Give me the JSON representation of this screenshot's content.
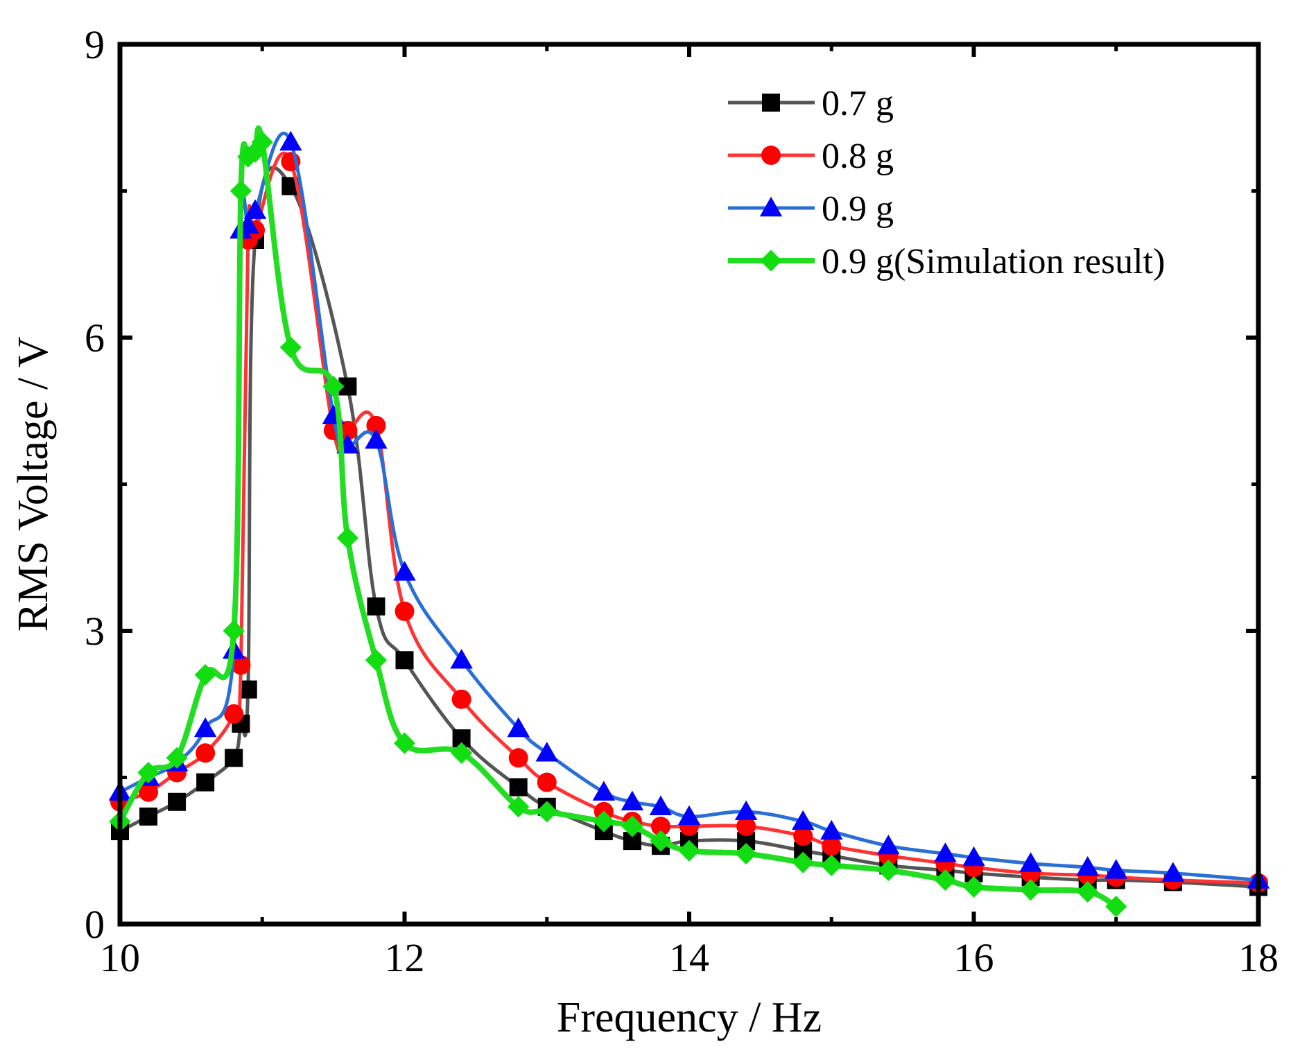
{
  "chart_data": {
    "type": "line",
    "title": "",
    "xlabel": "Frequency / Hz",
    "ylabel": "RMS Voltage / V",
    "xlim": [
      10,
      18
    ],
    "ylim": [
      0,
      9
    ],
    "xticks": [
      10,
      12,
      14,
      16,
      18
    ],
    "yticks": [
      0,
      3,
      6,
      9
    ],
    "grid": false,
    "legend_position": "top-right",
    "series": [
      {
        "name": "0.7 g",
        "color": "#555555",
        "marker_color": "#000000",
        "marker": "square",
        "x": [
          10.0,
          10.2,
          10.4,
          10.6,
          10.8,
          10.85,
          10.9,
          10.95,
          11.2,
          11.6,
          11.8,
          12.0,
          12.4,
          12.8,
          13.0,
          13.4,
          13.6,
          13.8,
          14.0,
          14.4,
          14.8,
          15.0,
          15.4,
          15.8,
          16.0,
          16.4,
          16.8,
          17.0,
          17.4,
          18.0
        ],
        "y": [
          0.95,
          1.1,
          1.25,
          1.45,
          1.7,
          2.05,
          2.4,
          7.0,
          7.55,
          5.5,
          3.25,
          2.7,
          1.9,
          1.4,
          1.2,
          0.95,
          0.85,
          0.8,
          0.85,
          0.85,
          0.75,
          0.7,
          0.6,
          0.55,
          0.52,
          0.48,
          0.45,
          0.45,
          0.43,
          0.38
        ]
      },
      {
        "name": "0.8 g",
        "color": "#ff3333",
        "marker_color": "#ff0000",
        "marker": "circle",
        "x": [
          10.0,
          10.2,
          10.4,
          10.6,
          10.8,
          10.85,
          10.9,
          10.95,
          11.2,
          11.5,
          11.6,
          11.8,
          12.0,
          12.4,
          12.8,
          13.0,
          13.4,
          13.6,
          13.8,
          14.0,
          14.4,
          14.8,
          15.0,
          15.4,
          15.8,
          16.0,
          16.4,
          16.8,
          17.0,
          17.4,
          18.0
        ],
        "y": [
          1.25,
          1.35,
          1.55,
          1.75,
          2.15,
          2.65,
          7.0,
          7.1,
          7.8,
          5.05,
          5.05,
          5.1,
          3.2,
          2.3,
          1.7,
          1.45,
          1.15,
          1.05,
          1.0,
          1.0,
          1.0,
          0.9,
          0.8,
          0.7,
          0.62,
          0.58,
          0.52,
          0.5,
          0.48,
          0.45,
          0.42
        ]
      },
      {
        "name": "0.9 g",
        "color": "#2a6fd6",
        "marker_color": "#0000ff",
        "marker": "triangle",
        "x": [
          10.0,
          10.2,
          10.4,
          10.6,
          10.8,
          10.85,
          10.9,
          10.95,
          11.2,
          11.5,
          11.6,
          11.8,
          12.0,
          12.4,
          12.8,
          13.0,
          13.4,
          13.6,
          13.8,
          14.0,
          14.4,
          14.8,
          15.0,
          15.4,
          15.8,
          16.0,
          16.4,
          16.8,
          17.0,
          17.4,
          18.0
        ],
        "y": [
          1.35,
          1.5,
          1.65,
          2.0,
          2.8,
          7.1,
          7.15,
          7.3,
          8.0,
          5.2,
          4.9,
          4.95,
          3.6,
          2.7,
          2.0,
          1.75,
          1.35,
          1.25,
          1.2,
          1.1,
          1.15,
          1.05,
          0.95,
          0.8,
          0.72,
          0.68,
          0.62,
          0.58,
          0.55,
          0.52,
          0.45
        ]
      },
      {
        "name": "0.9 g(Simulation result)",
        "color": "#22dd22",
        "marker_color": "#11dd11",
        "marker": "diamond",
        "x": [
          10.0,
          10.2,
          10.4,
          10.6,
          10.8,
          10.85,
          10.9,
          10.95,
          11.0,
          11.2,
          11.5,
          11.6,
          11.8,
          12.0,
          12.4,
          12.8,
          13.0,
          13.4,
          13.6,
          13.8,
          14.0,
          14.4,
          14.8,
          15.0,
          15.4,
          15.8,
          16.0,
          16.4,
          16.8,
          17.0
        ],
        "y": [
          1.05,
          1.55,
          1.7,
          2.55,
          3.0,
          7.5,
          7.85,
          7.9,
          8.0,
          5.9,
          5.5,
          3.95,
          2.7,
          1.85,
          1.75,
          1.2,
          1.15,
          1.05,
          1.0,
          0.85,
          0.75,
          0.72,
          0.63,
          0.6,
          0.55,
          0.45,
          0.38,
          0.35,
          0.33,
          0.18
        ]
      }
    ]
  }
}
